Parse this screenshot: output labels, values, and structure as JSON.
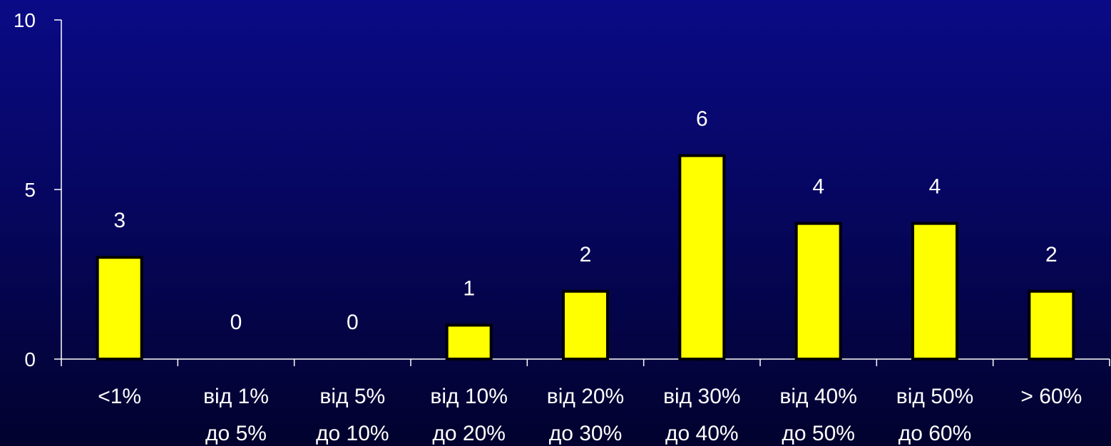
{
  "chart_data": {
    "type": "bar",
    "categories": [
      [
        "<1%"
      ],
      [
        "від 1%",
        "до 5%"
      ],
      [
        "від 5%",
        "до 10%"
      ],
      [
        "від 10%",
        "до 20%"
      ],
      [
        "від 20%",
        "до 30%"
      ],
      [
        "від 30%",
        "до 40%"
      ],
      [
        "від 40%",
        "до 50%"
      ],
      [
        "від 50%",
        "до 60%"
      ],
      [
        "> 60%"
      ]
    ],
    "values": [
      3,
      0,
      0,
      1,
      2,
      6,
      4,
      4,
      2
    ],
    "data_labels": [
      "3",
      "0",
      "0",
      "1",
      "2",
      "6",
      "4",
      "4",
      "2"
    ],
    "yticks": [
      0,
      5,
      10
    ],
    "ylim": [
      0,
      10
    ],
    "grid": false,
    "colors": {
      "bar_fill": "#ffff00",
      "bar_stroke": "#000000",
      "axis": "#ffffff",
      "text": "#ffffff"
    }
  }
}
